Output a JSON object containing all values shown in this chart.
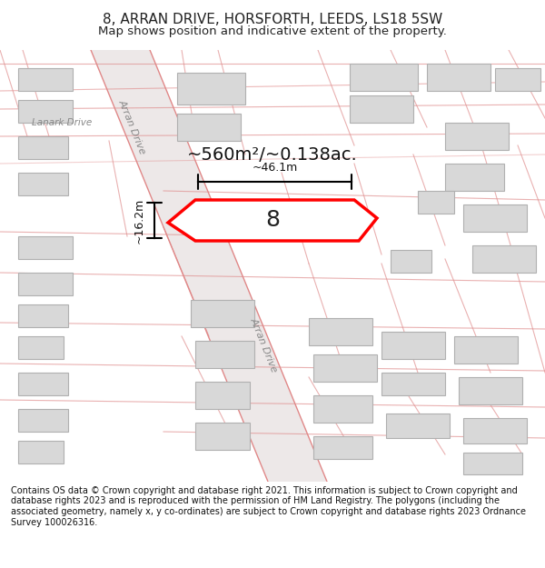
{
  "title_line1": "8, ARRAN DRIVE, HORSFORTH, LEEDS, LS18 5SW",
  "title_line2": "Map shows position and indicative extent of the property.",
  "area_label": "~560m²/~0.138ac.",
  "number_label": "8",
  "dim_width": "~46.1m",
  "dim_height": "~16.2m",
  "road_label1": "Arran Drive",
  "road_label2": "Arran Drive",
  "lanark_label": "Lanark Drive",
  "footnote": "Contains OS data © Crown copyright and database right 2021. This information is subject to Crown copyright and database rights 2023 and is reproduced with the permission of HM Land Registry. The polygons (including the associated geometry, namely x, y co-ordinates) are subject to Crown copyright and database rights 2023 Ordnance Survey 100026316.",
  "bg_color": "#f5f5f5",
  "map_bg": "#ffffff",
  "road_color": "#f0c8c8",
  "road_stroke": "#e08080",
  "building_color": "#d8d8d8",
  "highlight_color": "#ff0000",
  "dim_color": "#000000",
  "title_bg": "#ffffff",
  "footer_bg": "#ffffff"
}
